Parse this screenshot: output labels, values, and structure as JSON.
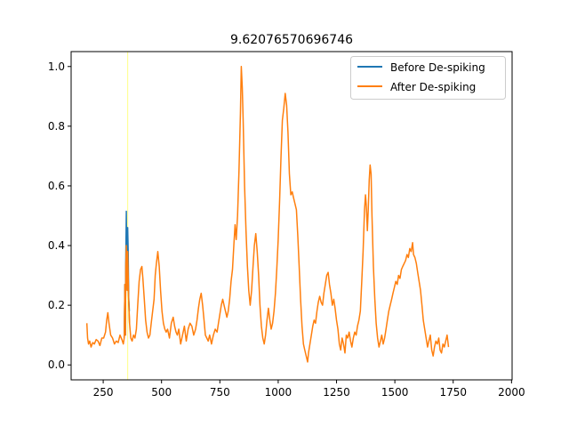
{
  "chart_data": {
    "type": "line",
    "title": "9.62076570696746",
    "xlabel": "",
    "ylabel": "",
    "xlim": [
      112.5,
      2002.5
    ],
    "ylim": [
      -0.05,
      1.05
    ],
    "x_ticks": [
      250,
      500,
      750,
      1000,
      1250,
      1500,
      1750,
      2000
    ],
    "y_ticks": [
      0.0,
      0.2,
      0.4,
      0.6,
      0.8,
      1.0
    ],
    "grid": false,
    "legend_position": "upper right",
    "highlight_vline": {
      "x": 355,
      "color": "#ffff88"
    },
    "series": [
      {
        "name": "Before De-spiking",
        "color": "#1f77b4",
        "points": [
          [
            340,
            0.09
          ],
          [
            343,
            0.27
          ],
          [
            345,
            0.1
          ],
          [
            347,
            0.36
          ],
          [
            349,
            0.515
          ],
          [
            351,
            0.3
          ],
          [
            353,
            0.25
          ],
          [
            355,
            0.46
          ],
          [
            357,
            0.38
          ],
          [
            359,
            0.23
          ],
          [
            362,
            0.18
          ]
        ]
      },
      {
        "name": "After De-spiking",
        "color": "#ff7f0e",
        "points": [
          [
            180,
            0.14
          ],
          [
            183,
            0.09
          ],
          [
            187,
            0.07
          ],
          [
            192,
            0.08
          ],
          [
            198,
            0.06
          ],
          [
            205,
            0.075
          ],
          [
            212,
            0.07
          ],
          [
            220,
            0.085
          ],
          [
            228,
            0.08
          ],
          [
            236,
            0.065
          ],
          [
            244,
            0.09
          ],
          [
            252,
            0.09
          ],
          [
            260,
            0.11
          ],
          [
            265,
            0.15
          ],
          [
            270,
            0.175
          ],
          [
            275,
            0.14
          ],
          [
            282,
            0.1
          ],
          [
            290,
            0.09
          ],
          [
            298,
            0.07
          ],
          [
            306,
            0.08
          ],
          [
            314,
            0.075
          ],
          [
            322,
            0.1
          ],
          [
            330,
            0.085
          ],
          [
            336,
            0.07
          ],
          [
            340,
            0.09
          ],
          [
            343,
            0.27
          ],
          [
            345,
            0.1
          ],
          [
            347,
            0.33
          ],
          [
            349,
            0.4
          ],
          [
            351,
            0.3
          ],
          [
            353,
            0.25
          ],
          [
            355,
            0.38
          ],
          [
            357,
            0.3
          ],
          [
            359,
            0.22
          ],
          [
            363,
            0.14
          ],
          [
            368,
            0.09
          ],
          [
            374,
            0.08
          ],
          [
            380,
            0.1
          ],
          [
            386,
            0.09
          ],
          [
            392,
            0.12
          ],
          [
            398,
            0.2
          ],
          [
            404,
            0.28
          ],
          [
            410,
            0.32
          ],
          [
            416,
            0.33
          ],
          [
            420,
            0.29
          ],
          [
            426,
            0.22
          ],
          [
            432,
            0.15
          ],
          [
            438,
            0.11
          ],
          [
            444,
            0.09
          ],
          [
            450,
            0.1
          ],
          [
            456,
            0.14
          ],
          [
            462,
            0.18
          ],
          [
            468,
            0.22
          ],
          [
            473,
            0.3
          ],
          [
            478,
            0.34
          ],
          [
            484,
            0.38
          ],
          [
            490,
            0.33
          ],
          [
            496,
            0.25
          ],
          [
            502,
            0.18
          ],
          [
            508,
            0.14
          ],
          [
            514,
            0.12
          ],
          [
            520,
            0.11
          ],
          [
            526,
            0.12
          ],
          [
            534,
            0.09
          ],
          [
            542,
            0.14
          ],
          [
            550,
            0.16
          ],
          [
            556,
            0.13
          ],
          [
            562,
            0.11
          ],
          [
            568,
            0.1
          ],
          [
            574,
            0.12
          ],
          [
            582,
            0.07
          ],
          [
            590,
            0.1
          ],
          [
            598,
            0.13
          ],
          [
            606,
            0.08
          ],
          [
            614,
            0.12
          ],
          [
            622,
            0.14
          ],
          [
            630,
            0.13
          ],
          [
            638,
            0.1
          ],
          [
            646,
            0.12
          ],
          [
            652,
            0.15
          ],
          [
            658,
            0.19
          ],
          [
            664,
            0.22
          ],
          [
            670,
            0.24
          ],
          [
            676,
            0.2
          ],
          [
            682,
            0.15
          ],
          [
            688,
            0.1
          ],
          [
            694,
            0.09
          ],
          [
            700,
            0.08
          ],
          [
            706,
            0.1
          ],
          [
            714,
            0.07
          ],
          [
            722,
            0.1
          ],
          [
            730,
            0.12
          ],
          [
            738,
            0.11
          ],
          [
            744,
            0.14
          ],
          [
            750,
            0.17
          ],
          [
            756,
            0.2
          ],
          [
            762,
            0.22
          ],
          [
            768,
            0.2
          ],
          [
            774,
            0.18
          ],
          [
            780,
            0.16
          ],
          [
            786,
            0.18
          ],
          [
            792,
            0.22
          ],
          [
            798,
            0.28
          ],
          [
            804,
            0.32
          ],
          [
            810,
            0.4
          ],
          [
            815,
            0.47
          ],
          [
            820,
            0.42
          ],
          [
            826,
            0.5
          ],
          [
            832,
            0.65
          ],
          [
            838,
            0.84
          ],
          [
            842,
            1.0
          ],
          [
            846,
            0.93
          ],
          [
            850,
            0.82
          ],
          [
            856,
            0.6
          ],
          [
            862,
            0.45
          ],
          [
            868,
            0.33
          ],
          [
            874,
            0.25
          ],
          [
            880,
            0.2
          ],
          [
            886,
            0.25
          ],
          [
            892,
            0.33
          ],
          [
            898,
            0.4
          ],
          [
            904,
            0.44
          ],
          [
            910,
            0.38
          ],
          [
            916,
            0.3
          ],
          [
            922,
            0.2
          ],
          [
            928,
            0.13
          ],
          [
            934,
            0.09
          ],
          [
            940,
            0.07
          ],
          [
            946,
            0.1
          ],
          [
            952,
            0.15
          ],
          [
            958,
            0.19
          ],
          [
            964,
            0.15
          ],
          [
            970,
            0.12
          ],
          [
            976,
            0.14
          ],
          [
            982,
            0.18
          ],
          [
            988,
            0.24
          ],
          [
            994,
            0.32
          ],
          [
            1000,
            0.42
          ],
          [
            1006,
            0.55
          ],
          [
            1012,
            0.7
          ],
          [
            1018,
            0.82
          ],
          [
            1024,
            0.86
          ],
          [
            1030,
            0.91
          ],
          [
            1036,
            0.87
          ],
          [
            1042,
            0.78
          ],
          [
            1048,
            0.64
          ],
          [
            1054,
            0.57
          ],
          [
            1060,
            0.58
          ],
          [
            1066,
            0.56
          ],
          [
            1072,
            0.54
          ],
          [
            1078,
            0.52
          ],
          [
            1084,
            0.43
          ],
          [
            1090,
            0.33
          ],
          [
            1096,
            0.22
          ],
          [
            1102,
            0.13
          ],
          [
            1108,
            0.07
          ],
          [
            1114,
            0.05
          ],
          [
            1120,
            0.03
          ],
          [
            1126,
            0.01
          ],
          [
            1130,
            0.04
          ],
          [
            1136,
            0.07
          ],
          [
            1142,
            0.1
          ],
          [
            1148,
            0.13
          ],
          [
            1154,
            0.15
          ],
          [
            1160,
            0.14
          ],
          [
            1166,
            0.18
          ],
          [
            1172,
            0.21
          ],
          [
            1178,
            0.23
          ],
          [
            1184,
            0.21
          ],
          [
            1190,
            0.2
          ],
          [
            1196,
            0.24
          ],
          [
            1202,
            0.27
          ],
          [
            1208,
            0.3
          ],
          [
            1214,
            0.31
          ],
          [
            1220,
            0.27
          ],
          [
            1226,
            0.24
          ],
          [
            1232,
            0.2
          ],
          [
            1238,
            0.22
          ],
          [
            1244,
            0.19
          ],
          [
            1250,
            0.15
          ],
          [
            1256,
            0.12
          ],
          [
            1262,
            0.07
          ],
          [
            1268,
            0.05
          ],
          [
            1274,
            0.09
          ],
          [
            1280,
            0.07
          ],
          [
            1286,
            0.04
          ],
          [
            1292,
            0.1
          ],
          [
            1298,
            0.09
          ],
          [
            1304,
            0.11
          ],
          [
            1310,
            0.08
          ],
          [
            1316,
            0.06
          ],
          [
            1322,
            0.09
          ],
          [
            1328,
            0.11
          ],
          [
            1334,
            0.1
          ],
          [
            1340,
            0.13
          ],
          [
            1346,
            0.15
          ],
          [
            1352,
            0.18
          ],
          [
            1358,
            0.28
          ],
          [
            1364,
            0.38
          ],
          [
            1370,
            0.52
          ],
          [
            1374,
            0.57
          ],
          [
            1378,
            0.53
          ],
          [
            1382,
            0.45
          ],
          [
            1386,
            0.52
          ],
          [
            1390,
            0.62
          ],
          [
            1394,
            0.67
          ],
          [
            1398,
            0.64
          ],
          [
            1402,
            0.5
          ],
          [
            1408,
            0.33
          ],
          [
            1414,
            0.22
          ],
          [
            1420,
            0.14
          ],
          [
            1426,
            0.09
          ],
          [
            1432,
            0.06
          ],
          [
            1438,
            0.08
          ],
          [
            1444,
            0.1
          ],
          [
            1450,
            0.07
          ],
          [
            1456,
            0.09
          ],
          [
            1462,
            0.12
          ],
          [
            1468,
            0.15
          ],
          [
            1474,
            0.18
          ],
          [
            1480,
            0.2
          ],
          [
            1486,
            0.22
          ],
          [
            1492,
            0.24
          ],
          [
            1498,
            0.26
          ],
          [
            1504,
            0.28
          ],
          [
            1510,
            0.27
          ],
          [
            1516,
            0.3
          ],
          [
            1522,
            0.29
          ],
          [
            1528,
            0.32
          ],
          [
            1534,
            0.33
          ],
          [
            1540,
            0.34
          ],
          [
            1546,
            0.35
          ],
          [
            1552,
            0.37
          ],
          [
            1558,
            0.36
          ],
          [
            1564,
            0.39
          ],
          [
            1570,
            0.38
          ],
          [
            1576,
            0.41
          ],
          [
            1580,
            0.37
          ],
          [
            1586,
            0.36
          ],
          [
            1592,
            0.34
          ],
          [
            1598,
            0.31
          ],
          [
            1604,
            0.28
          ],
          [
            1610,
            0.25
          ],
          [
            1616,
            0.2
          ],
          [
            1622,
            0.15
          ],
          [
            1628,
            0.12
          ],
          [
            1634,
            0.09
          ],
          [
            1640,
            0.06
          ],
          [
            1646,
            0.08
          ],
          [
            1652,
            0.1
          ],
          [
            1658,
            0.05
          ],
          [
            1664,
            0.03
          ],
          [
            1670,
            0.06
          ],
          [
            1676,
            0.08
          ],
          [
            1682,
            0.07
          ],
          [
            1688,
            0.09
          ],
          [
            1694,
            0.05
          ],
          [
            1700,
            0.04
          ],
          [
            1706,
            0.07
          ],
          [
            1712,
            0.06
          ],
          [
            1718,
            0.08
          ],
          [
            1724,
            0.1
          ],
          [
            1730,
            0.06
          ]
        ]
      }
    ]
  }
}
